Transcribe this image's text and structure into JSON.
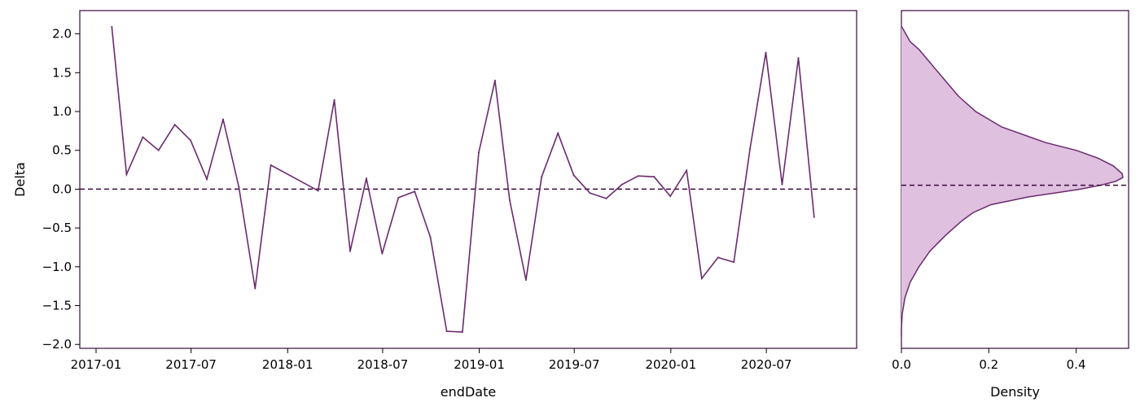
{
  "chart_data": [
    {
      "type": "line",
      "xlabel": "endDate",
      "ylabel": "Delta",
      "ylim": [
        -2.05,
        2.3
      ],
      "xlim": [
        "2016-12-01",
        "2020-12-20"
      ],
      "x_ticks": [
        "2017-01-01",
        "2017-07-01",
        "2018-01-01",
        "2018-07-01",
        "2019-01-01",
        "2019-07-01",
        "2020-01-01",
        "2020-07-01"
      ],
      "x_tick_labels": [
        "2017-01",
        "2017-07",
        "2018-01",
        "2018-07",
        "2019-01",
        "2019-07",
        "2020-01",
        "2020-07"
      ],
      "y_ticks": [
        2.0,
        1.5,
        1.0,
        0.5,
        0.0,
        -0.5,
        -1.0,
        -1.5,
        -2.0
      ],
      "y_tick_labels": [
        "2.0",
        "1.5",
        "1.0",
        "0.5",
        "0.0",
        "−0.5",
        "−1.0",
        "−1.5",
        "−2.0"
      ],
      "reference_line": 0.0,
      "line_color": "#6b2a6e",
      "reference_color": "#3a0a3d",
      "grid": false,
      "series": [
        {
          "x": [
            "2017-01-31",
            "2017-02-28",
            "2017-03-31",
            "2017-04-30",
            "2017-05-31",
            "2017-06-30",
            "2017-07-31",
            "2017-08-31",
            "2017-09-30",
            "2017-10-31",
            "2017-11-30",
            "2018-02-28",
            "2018-03-31",
            "2018-04-30",
            "2018-05-31",
            "2018-06-30",
            "2018-07-31",
            "2018-08-31",
            "2018-09-30",
            "2018-10-31",
            "2018-11-30",
            "2018-12-31",
            "2019-01-31",
            "2019-02-28",
            "2019-03-31",
            "2019-04-30",
            "2019-05-31",
            "2019-06-30",
            "2019-07-31",
            "2019-08-31",
            "2019-09-30",
            "2019-10-31",
            "2019-11-30",
            "2019-12-31",
            "2020-01-31",
            "2020-02-29",
            "2020-03-31",
            "2020-04-30",
            "2020-05-31",
            "2020-06-30",
            "2020-07-31",
            "2020-08-31",
            "2020-09-30"
          ],
          "y": [
            2.09,
            0.19,
            0.67,
            0.5,
            0.83,
            0.63,
            0.13,
            0.9,
            0.03,
            -1.28,
            0.31,
            -0.02,
            1.15,
            -0.8,
            0.14,
            -0.83,
            -0.11,
            -0.03,
            -0.62,
            -1.83,
            -1.84,
            0.47,
            1.4,
            -0.14,
            -1.17,
            0.16,
            0.72,
            0.18,
            -0.05,
            -0.12,
            0.06,
            0.17,
            0.16,
            -0.09,
            0.24,
            -1.15,
            -0.88,
            -0.94,
            0.52,
            1.76,
            0.06,
            1.69,
            -0.36
          ]
        }
      ]
    },
    {
      "type": "area",
      "xlabel": "Density",
      "ylabel": "",
      "xlim": [
        0.0,
        0.52
      ],
      "ylim": [
        -2.05,
        2.3
      ],
      "x_ticks": [
        0.0,
        0.2,
        0.4
      ],
      "x_tick_labels": [
        "0.0",
        "0.2",
        "0.4"
      ],
      "reference_line": 0.05,
      "fill_color": "#dfc0df",
      "line_color": "#6b2a6e",
      "reference_color": "#3a0a3d",
      "grid": false,
      "series": [
        {
          "delta": [
            2.1,
            2.0,
            1.9,
            1.8,
            1.6,
            1.4,
            1.2,
            1.0,
            0.8,
            0.6,
            0.5,
            0.4,
            0.3,
            0.2,
            0.15,
            0.1,
            0.05,
            0.0,
            -0.05,
            -0.1,
            -0.2,
            -0.3,
            -0.4,
            -0.5,
            -0.6,
            -0.8,
            -1.0,
            -1.2,
            -1.4,
            -1.5,
            -1.6,
            -1.7,
            -1.8,
            -1.9
          ],
          "density": [
            0.0,
            0.01,
            0.02,
            0.04,
            0.07,
            0.1,
            0.13,
            0.17,
            0.23,
            0.33,
            0.4,
            0.45,
            0.485,
            0.505,
            0.507,
            0.49,
            0.455,
            0.41,
            0.35,
            0.29,
            0.205,
            0.165,
            0.14,
            0.12,
            0.1,
            0.065,
            0.04,
            0.02,
            0.008,
            0.005,
            0.002,
            0.001,
            0.0,
            0.0
          ]
        }
      ]
    }
  ]
}
